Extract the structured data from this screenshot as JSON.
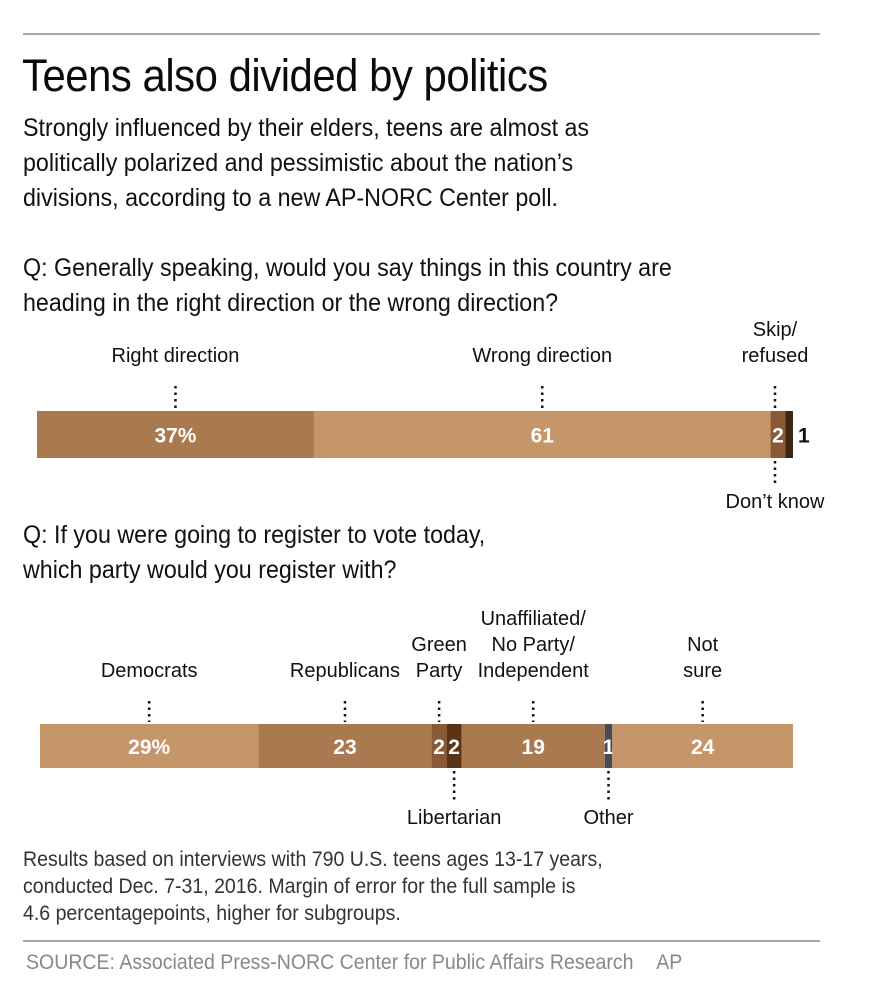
{
  "header": {
    "title": "Teens also divided by politics",
    "subtitle_lines": [
      "Strongly influenced by their elders, teens are almost as",
      "politically polarized and pessimistic about the nation’s",
      "divisions, according to a new AP-NORC Center poll."
    ]
  },
  "footer": {
    "note_lines": [
      "Results based on interviews with 790 U.S. teens ages 13-17 years,",
      "conducted Dec. 7-31, 2016. Margin of error for the full sample is",
      "4.6 percentagepoints, higher for subgroups."
    ],
    "source": "SOURCE: Associated Press-NORC Center for Public Affairs Research",
    "credit": "AP"
  },
  "chart_data": [
    {
      "type": "bar",
      "stacked": true,
      "orientation": "horizontal",
      "title": "Q: Generally speaking, would you say things in this country are heading in the right direction or the wrong direction?",
      "title_lines": [
        "Q: Generally speaking, would you say things in this country are",
        "heading in the right direction or the wrong direction?"
      ],
      "unit": "%",
      "segments": [
        {
          "name": "Right direction",
          "label_lines": [
            "Right direction"
          ],
          "value": 37,
          "display": "37%",
          "color": "#a97a50",
          "label_pos": "above"
        },
        {
          "name": "Wrong direction",
          "label_lines": [
            "Wrong direction"
          ],
          "value": 61,
          "display": "61",
          "color": "#c4966a",
          "label_pos": "above"
        },
        {
          "name": "Don't know",
          "label_lines": [
            "Don’t know"
          ],
          "value": 2,
          "display": "2",
          "color": "#8a5a36",
          "label_pos": "below"
        },
        {
          "name": "Skip/refused",
          "label_lines": [
            "Skip/",
            "refused"
          ],
          "value": 1,
          "display": "1",
          "color": "#3d2614",
          "label_pos": "above",
          "value_outside": true
        }
      ]
    },
    {
      "type": "bar",
      "stacked": true,
      "orientation": "horizontal",
      "title": "Q: If you were going to register to vote today, which party would you register with?",
      "title_lines": [
        "Q: If you were going to register to vote today,",
        "which party would you register with?"
      ],
      "unit": "%",
      "segments": [
        {
          "name": "Democrats",
          "label_lines": [
            "Democrats"
          ],
          "value": 29,
          "display": "29%",
          "color": "#c4966a",
          "label_pos": "above"
        },
        {
          "name": "Republicans",
          "label_lines": [
            "Republicans"
          ],
          "value": 23,
          "display": "23",
          "color": "#a97a50",
          "label_pos": "above"
        },
        {
          "name": "Green Party",
          "label_lines": [
            "Green",
            "Party"
          ],
          "value": 2,
          "display": "2",
          "color": "#8a5a36",
          "label_pos": "above"
        },
        {
          "name": "Libertarian",
          "label_lines": [
            "Libertarian"
          ],
          "value": 2,
          "display": "2",
          "color": "#5a3416",
          "label_pos": "below"
        },
        {
          "name": "Unaffiliated/No Party/Independent",
          "label_lines": [
            "Unaffiliated/",
            "No Party/",
            "Independent"
          ],
          "value": 19,
          "display": "19",
          "color": "#a97a50",
          "label_pos": "above"
        },
        {
          "name": "Other",
          "label_lines": [
            "Other"
          ],
          "value": 1,
          "display": "1",
          "color": "#4a4a52",
          "label_pos": "below"
        },
        {
          "name": "Not sure",
          "label_lines": [
            "Not",
            "sure"
          ],
          "value": 24,
          "display": "24",
          "color": "#c4966a",
          "label_pos": "above"
        }
      ]
    }
  ]
}
